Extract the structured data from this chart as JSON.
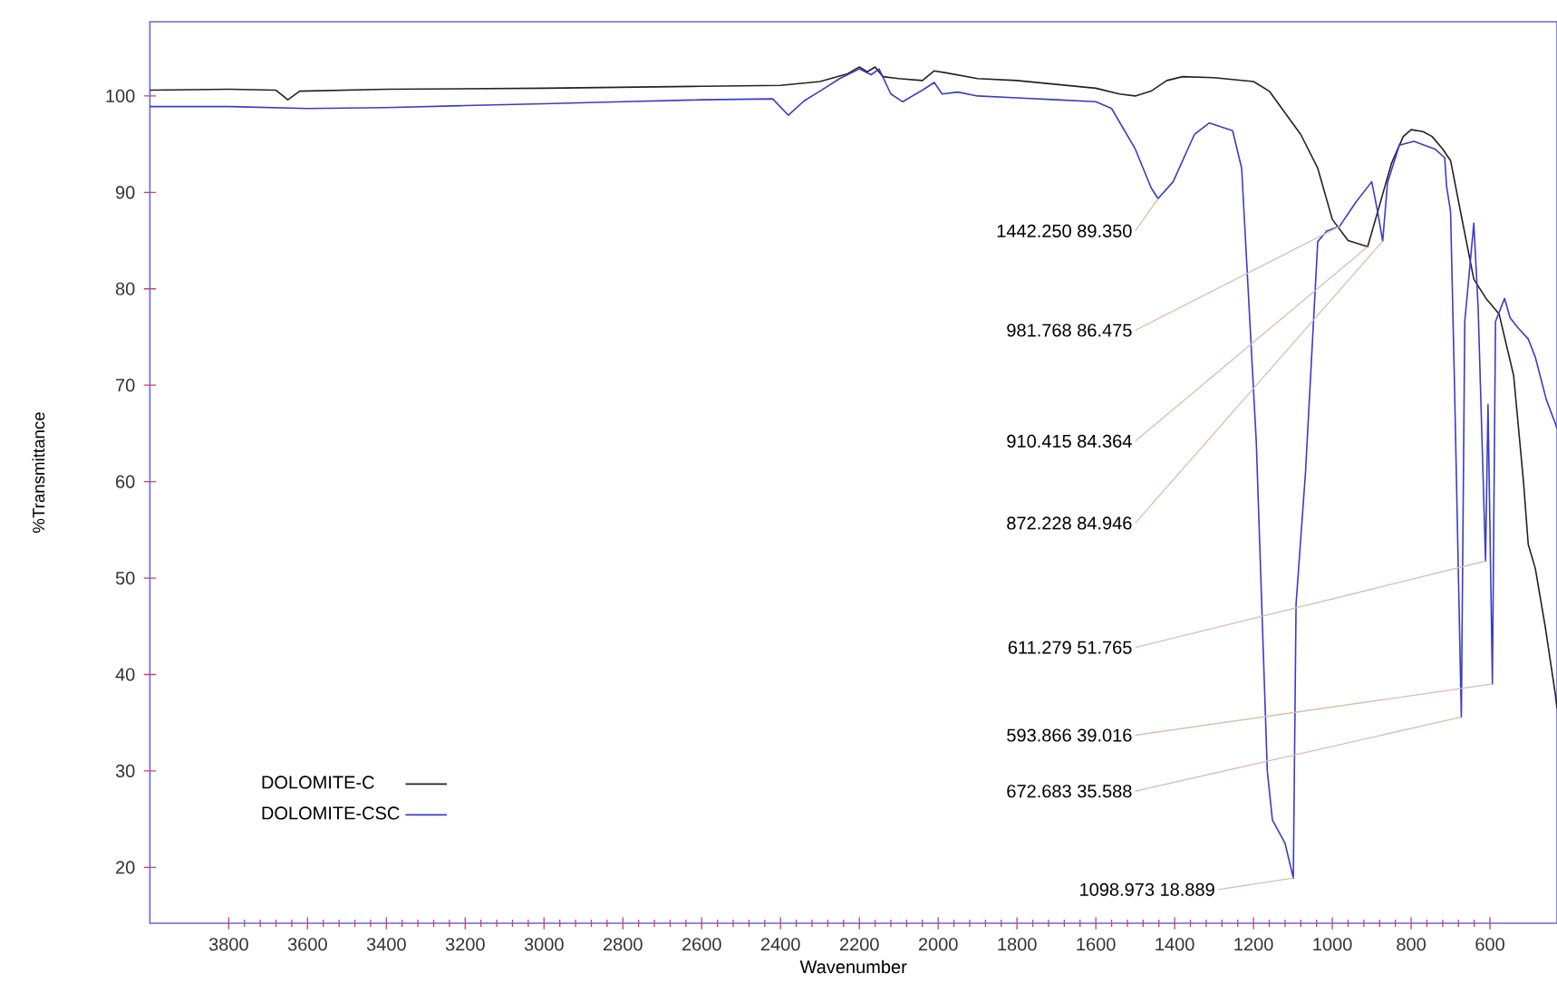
{
  "chart_data": {
    "type": "line",
    "xlabel": "Wavenumber",
    "ylabel": "%Transmittance",
    "xlim": [
      4000,
      430
    ],
    "ylim": [
      14.2,
      107.7
    ],
    "xticks": [
      3800,
      3600,
      3400,
      3200,
      3000,
      2800,
      2600,
      2400,
      2200,
      2000,
      1800,
      1600,
      1400,
      1200,
      1000,
      800,
      600
    ],
    "yticks": [
      20,
      30,
      40,
      50,
      60,
      70,
      80,
      90,
      100
    ],
    "grid": false,
    "legend": "bottom left",
    "marker": "none",
    "line_style": "solid",
    "series": [
      {
        "name": "DOLOMITE-C",
        "color": "#222222",
        "x": [
          4000,
          3800,
          3680,
          3650,
          3620,
          3400,
          3000,
          2600,
          2400,
          2300,
          2230,
          2200,
          2180,
          2160,
          2140,
          2100,
          2040,
          2010,
          1980,
          1900,
          1800,
          1700,
          1600,
          1540,
          1500,
          1460,
          1420,
          1380,
          1300,
          1200,
          1160,
          1128,
          1080,
          1037,
          1000,
          960,
          910.415,
          880,
          850,
          820,
          800,
          770,
          747,
          720,
          700,
          670,
          641,
          610,
          577,
          540,
          515,
          503,
          485,
          460,
          434,
          430
        ],
        "values": [
          100.6,
          100.7,
          100.6,
          99.6,
          100.5,
          100.7,
          100.8,
          101.0,
          101.1,
          101.5,
          102.3,
          103.0,
          102.5,
          103.0,
          102.0,
          101.8,
          101.6,
          102.6,
          102.4,
          101.8,
          101.6,
          101.2,
          100.8,
          100.2,
          100.0,
          100.5,
          101.6,
          102.0,
          101.9,
          101.5,
          100.5,
          98.7,
          96.0,
          92.5,
          87.2,
          85.0,
          84.364,
          88.7,
          93.0,
          95.8,
          96.5,
          96.3,
          95.8,
          94.5,
          93.3,
          87.0,
          81.0,
          79.0,
          77.4,
          71.0,
          60.0,
          53.5,
          51.0,
          45.0,
          37.9,
          36.5
        ]
      },
      {
        "name": "DOLOMITE-CSC",
        "color": "#3b3bc8",
        "x": [
          4000,
          3800,
          3600,
          3400,
          3200,
          3000,
          2800,
          2600,
          2420,
          2380,
          2340,
          2300,
          2250,
          2200,
          2170,
          2150,
          2120,
          2090,
          2040,
          2010,
          1990,
          1950,
          1900,
          1800,
          1700,
          1600,
          1560,
          1500,
          1460,
          1442.25,
          1404,
          1350,
          1312,
          1253,
          1230,
          1193,
          1165,
          1152,
          1120,
          1098.973,
          1092,
          1068,
          1037,
          1014,
          981.768,
          940,
          900,
          885,
          872.228,
          860,
          830,
          793,
          740,
          715,
          710,
          700,
          690,
          672.683,
          664,
          641,
          630,
          611.279,
          605,
          593.866,
          586,
          563,
          549,
          530,
          503,
          485,
          457,
          434,
          430
        ],
        "values": [
          98.9,
          98.9,
          98.7,
          98.8,
          99.0,
          99.2,
          99.4,
          99.6,
          99.7,
          98.0,
          99.5,
          100.5,
          101.8,
          102.8,
          102.2,
          102.8,
          100.2,
          99.4,
          100.6,
          101.4,
          100.2,
          100.4,
          100.0,
          99.8,
          99.6,
          99.4,
          98.7,
          94.5,
          90.5,
          89.35,
          91.1,
          96.0,
          97.2,
          96.4,
          92.5,
          64.2,
          30.0,
          24.9,
          22.5,
          18.889,
          47.3,
          61.0,
          84.9,
          86.0,
          86.475,
          89.0,
          91.1,
          88.0,
          84.946,
          91.0,
          94.9,
          95.3,
          94.5,
          93.6,
          90.6,
          88.0,
          70.0,
          35.588,
          76.6,
          86.8,
          78.0,
          51.765,
          68.0,
          39.016,
          76.6,
          79.0,
          77.0,
          76.0,
          74.8,
          72.9,
          68.5,
          66.0,
          65.5
        ]
      }
    ],
    "annotations": [
      {
        "text": "1442.250  89.350",
        "x": 1442.25,
        "y": 89.35
      },
      {
        "text": "981.768  86.475",
        "x": 981.768,
        "y": 86.475
      },
      {
        "text": "910.415  84.364",
        "x": 910.415,
        "y": 84.364
      },
      {
        "text": "872.228  84.946",
        "x": 872.228,
        "y": 84.946
      },
      {
        "text": "611.279  51.765",
        "x": 611.279,
        "y": 51.765
      },
      {
        "text": "593.866  39.016",
        "x": 593.866,
        "y": 39.016
      },
      {
        "text": "672.683  35.588",
        "x": 672.683,
        "y": 35.588
      },
      {
        "text": "1098.973  18.889",
        "x": 1098.973,
        "y": 18.889
      }
    ]
  }
}
